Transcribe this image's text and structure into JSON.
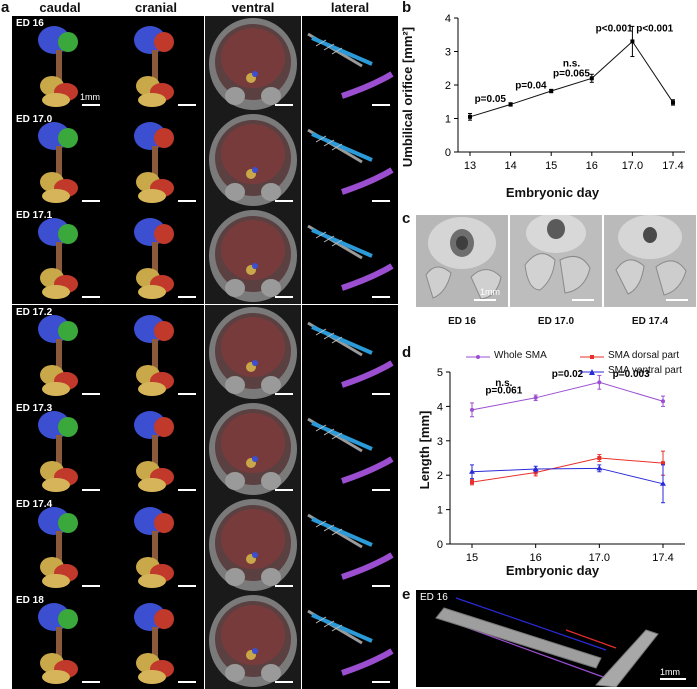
{
  "panel_a": {
    "letter": "a",
    "columns": [
      "caudal",
      "cranial",
      "ventral",
      "lateral"
    ],
    "rows": [
      "ED 16",
      "ED 17.0",
      "ED 17.1",
      "ED 17.2",
      "ED 17.3",
      "ED 17.4",
      "ED 18"
    ],
    "scale_label": "1mm"
  },
  "panel_b": {
    "letter": "b",
    "ytitle": "Umbilical orifice [mm²]",
    "xtitle": "Embryonic day",
    "yticks": [
      "0",
      "1",
      "2",
      "3",
      "4"
    ],
    "xticks": [
      "13",
      "14",
      "15",
      "16",
      "17.0",
      "17.4"
    ],
    "annotations": [
      "p=0.05",
      "p=0.04",
      "n.s.",
      "p=0.065",
      "p<0.001",
      "p<0.001"
    ]
  },
  "panel_c": {
    "letter": "c",
    "captions": [
      "ED 16",
      "ED 17.0",
      "ED 17.4"
    ],
    "scale_label": "1mm"
  },
  "panel_d": {
    "letter": "d",
    "ytitle": "Length [mm]",
    "xtitle": "Embryonic day",
    "yticks": [
      "0",
      "1",
      "2",
      "3",
      "4",
      "5"
    ],
    "xticks": [
      "15",
      "16",
      "17.0",
      "17.4"
    ],
    "legend": [
      "Whole SMA",
      "SMA dorsal part",
      "SMA ventral part"
    ],
    "annotations": [
      "n.s.",
      "p=0.061",
      "p=0.02",
      "p=0.003"
    ]
  },
  "panel_e": {
    "letter": "e",
    "label": "ED 16",
    "scale_label": "1mm"
  },
  "colors": {
    "whole": "#9b4fd0",
    "dorsal": "#e8302a",
    "ventral": "#2a2ad8",
    "line_b": "#111111"
  },
  "chart_data": [
    {
      "type": "line",
      "panel": "b",
      "x": [
        "13",
        "14",
        "15",
        "16",
        "17.0",
        "17.4"
      ],
      "series": [
        {
          "values": [
            1.05,
            1.42,
            1.82,
            2.2,
            3.3,
            1.48
          ]
        }
      ],
      "errors": [
        0.1,
        0.05,
        0.05,
        0.12,
        0.45,
        0.08
      ],
      "xlabel": "Embryonic day",
      "ylabel": "Umbilical orifice [mm²]",
      "ylim": [
        0,
        4
      ],
      "annotations": [
        "p=0.05",
        "p=0.04",
        "n.s.",
        "p=0.065",
        "p<0.001",
        "p<0.001"
      ]
    },
    {
      "type": "line",
      "panel": "d",
      "x": [
        "15",
        "16",
        "17.0",
        "17.4"
      ],
      "series": [
        {
          "name": "Whole SMA",
          "values": [
            3.9,
            4.25,
            4.7,
            4.15
          ],
          "errors": [
            0.2,
            0.08,
            0.2,
            0.15
          ]
        },
        {
          "name": "SMA dorsal part",
          "values": [
            1.8,
            2.08,
            2.5,
            2.35
          ],
          "errors": [
            0.08,
            0.1,
            0.1,
            0.35
          ]
        },
        {
          "name": "SMA ventral part",
          "values": [
            2.1,
            2.18,
            2.2,
            1.75
          ],
          "errors": [
            0.2,
            0.08,
            0.1,
            0.55
          ]
        }
      ],
      "xlabel": "Embryonic day",
      "ylabel": "Length [mm]",
      "ylim": [
        0,
        5
      ],
      "legend": "top",
      "annotations": [
        "n.s.",
        "p=0.061",
        "p=0.02",
        "p=0.003"
      ]
    }
  ]
}
